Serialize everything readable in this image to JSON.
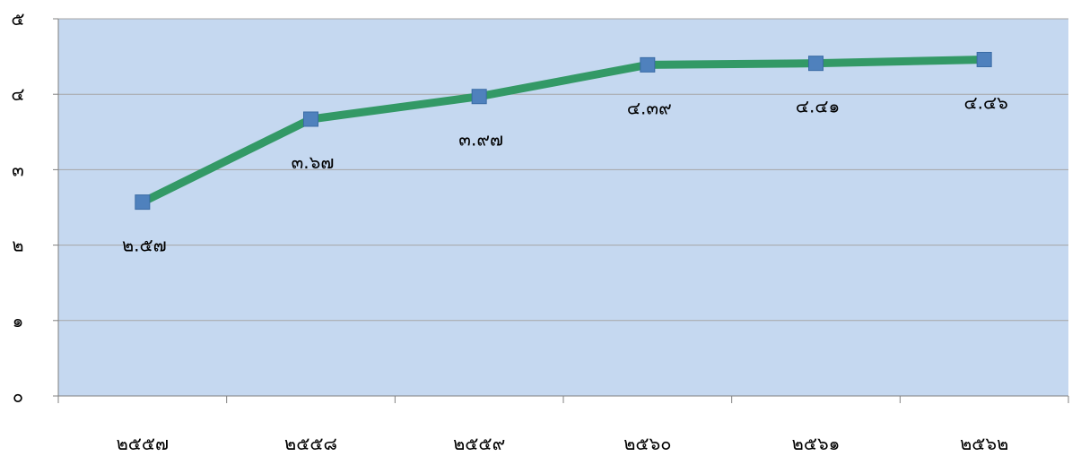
{
  "chart_data": {
    "type": "line",
    "title": "",
    "xlabel": "",
    "ylabel": "",
    "categories": [
      "๒๕๕๗",
      "๒๕๕๘",
      "๒๕๕๙",
      "๒๕๖๐",
      "๒๕๖๑",
      "๒๕๖๒"
    ],
    "values": [
      2.57,
      3.67,
      3.97,
      4.39,
      4.41,
      4.46
    ],
    "data_labels": [
      "๒.๕๗",
      "๓.๖๗",
      "๓.๙๗",
      "๔.๓๙",
      "๔.๔๑",
      "๔.๔๖"
    ],
    "ylim": [
      0,
      5
    ],
    "yticks": [
      0,
      1,
      2,
      3,
      4,
      5
    ],
    "ytick_labels": [
      "๐",
      "๑",
      "๒",
      "๓",
      "๔",
      "๕"
    ],
    "grid": true,
    "colors": {
      "plot_background": "#C5D8F0",
      "line": "#339966",
      "marker": "#4F81BD",
      "gridline": "#A6A6A6",
      "axis": "#808080"
    }
  }
}
